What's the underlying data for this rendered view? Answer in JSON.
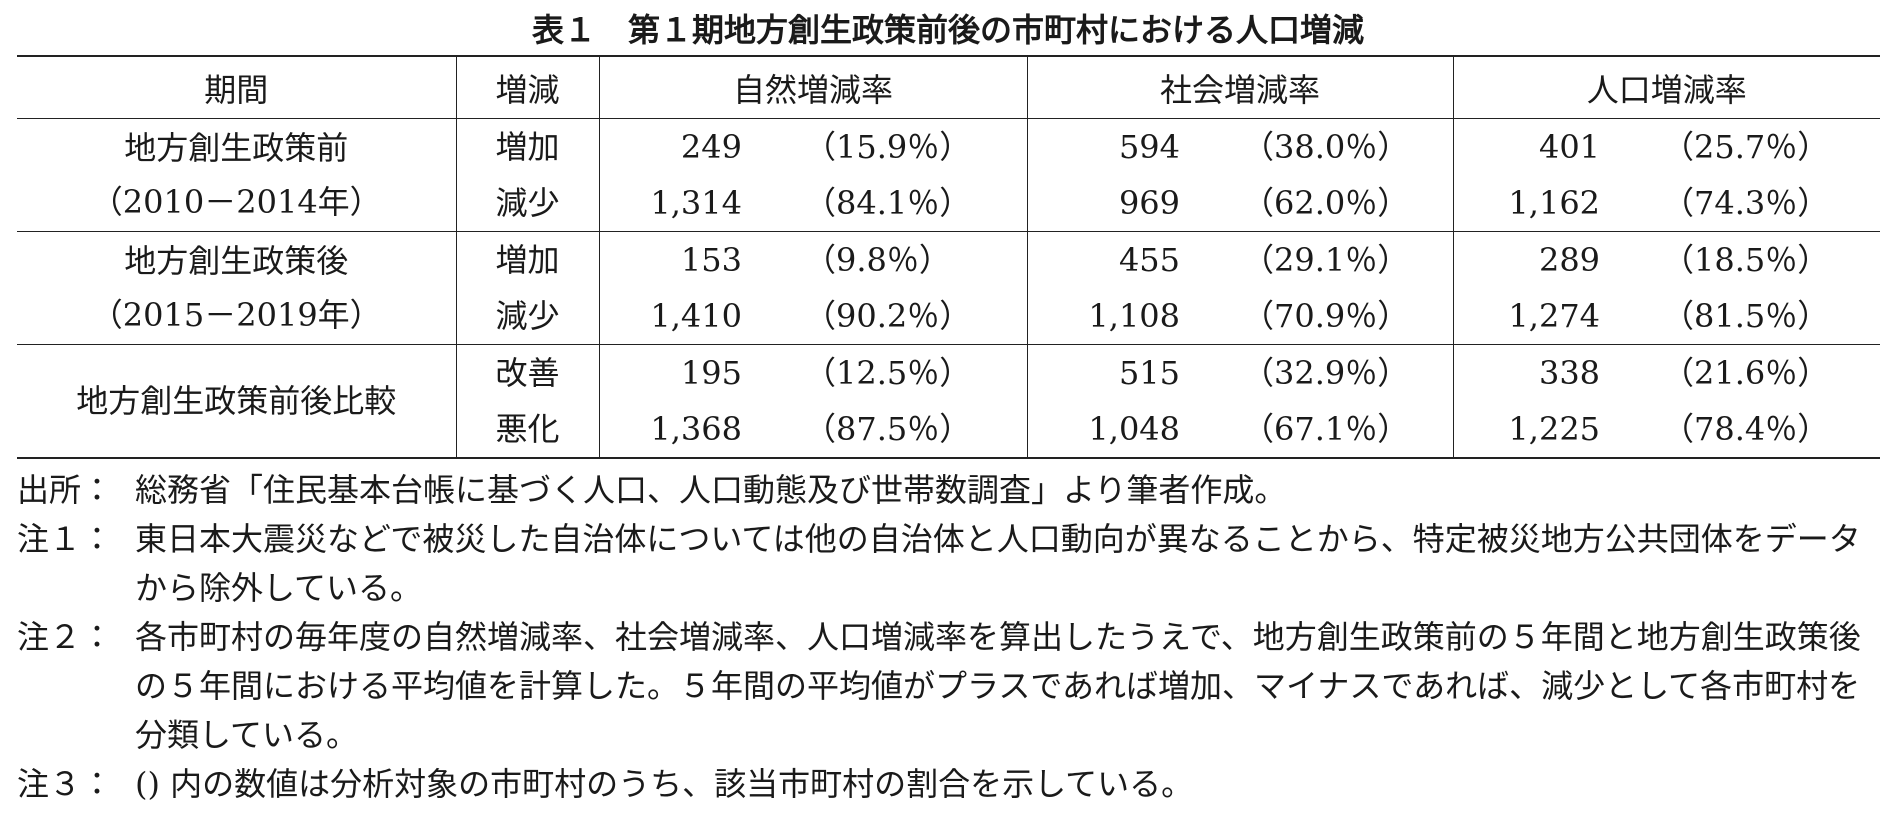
{
  "title": "表１　第１期地方創生政策前後の市町村における人口増減",
  "table": {
    "headers": [
      "期間",
      "増減",
      "自然増減率",
      "社会増減率",
      "人口増減率"
    ],
    "groups": [
      {
        "period": [
          "地方創生政策前",
          "（2010－2014年）"
        ],
        "rows": [
          [
            "増加",
            "249",
            "（15.9％）",
            "594",
            "（38.0％）",
            "401",
            "（25.7％）"
          ],
          [
            "減少",
            "1,314",
            "（84.1％）",
            "969",
            "（62.0％）",
            "1,162",
            "（74.3％）"
          ]
        ]
      },
      {
        "period": [
          "地方創生政策後",
          "（2015－2019年）"
        ],
        "rows": [
          [
            "増加",
            "153",
            "（9.8％）",
            "455",
            "（29.1％）",
            "289",
            "（18.5％）"
          ],
          [
            "減少",
            "1,410",
            "（90.2％）",
            "1,108",
            "（70.9％）",
            "1,274",
            "（81.5％）"
          ]
        ]
      },
      {
        "period": [
          "地方創生政策前後比較"
        ],
        "rows": [
          [
            "改善",
            "195",
            "（12.5％）",
            "515",
            "（32.9％）",
            "338",
            "（21.6％）"
          ],
          [
            "悪化",
            "1,368",
            "（87.5％）",
            "1,048",
            "（67.1％）",
            "1,225",
            "（78.4％）"
          ]
        ]
      }
    ]
  },
  "notes": [
    {
      "label": "出所：",
      "text": "総務省「住民基本台帳に基づく人口、人口動態及び世帯数調査」より筆者作成。"
    },
    {
      "label": "注１：",
      "text": "東日本大震災などで被災した自治体については他の自治体と人口動向が異なることから、特定被災地方公共団体をデータから除外している。"
    },
    {
      "label": "注２：",
      "text": "各市町村の毎年度の自然増減率、社会増減率、人口増減率を算出したうえで、地方創生政策前の５年間と地方創生政策後の５年間における平均値を計算した。５年間の平均値がプラスであれば増加、マイナスであれば、減少として各市町村を分類している。"
    },
    {
      "label": "注３：",
      "text": "() 内の数値は分析対象の市町村のうち、該当市町村の割合を示している。"
    }
  ]
}
